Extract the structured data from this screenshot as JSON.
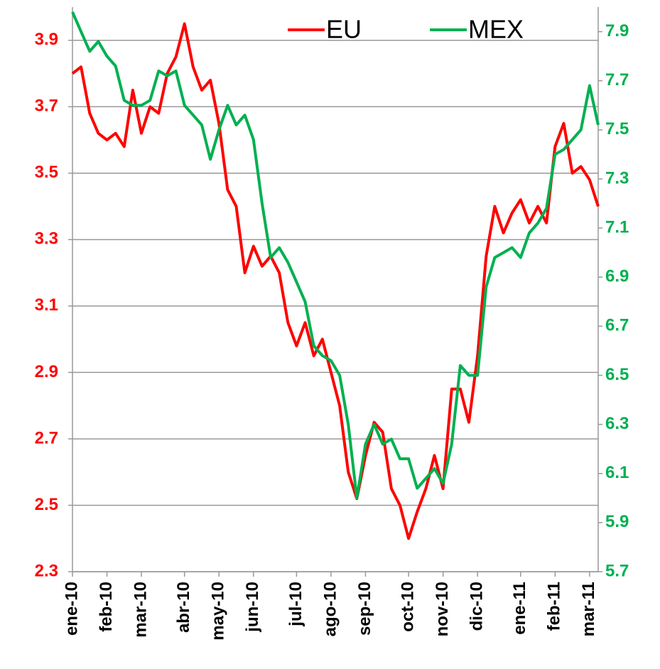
{
  "chart_data": {
    "type": "line",
    "categories": [
      "ene-10",
      null,
      null,
      null,
      "feb-10",
      null,
      null,
      null,
      "mar-10",
      null,
      null,
      null,
      null,
      "abr-10",
      null,
      null,
      null,
      "may-10",
      null,
      null,
      null,
      "jun-10",
      null,
      null,
      null,
      null,
      "jul-10",
      null,
      null,
      null,
      "ago-10",
      null,
      null,
      null,
      "sep-10",
      null,
      null,
      null,
      null,
      "oct-10",
      null,
      null,
      null,
      "nov-10",
      null,
      null,
      null,
      "dic-10",
      null,
      null,
      null,
      null,
      "ene-11",
      null,
      null,
      null,
      "feb-11",
      null,
      null,
      null,
      "mar-11",
      null
    ],
    "series": [
      {
        "name": "EU",
        "color": "#ff0000",
        "axis": "y",
        "values": [
          3.8,
          3.82,
          3.68,
          3.62,
          3.6,
          3.62,
          3.58,
          3.75,
          3.62,
          3.7,
          3.68,
          3.8,
          3.85,
          3.95,
          3.82,
          3.75,
          3.78,
          3.65,
          3.45,
          3.4,
          3.2,
          3.28,
          3.22,
          3.25,
          3.2,
          3.05,
          2.98,
          3.05,
          2.95,
          3.0,
          2.9,
          2.8,
          2.6,
          2.52,
          2.65,
          2.75,
          2.72,
          2.55,
          2.5,
          2.4,
          2.48,
          2.55,
          2.65,
          2.55,
          2.85,
          2.85,
          2.75,
          2.95,
          3.25,
          3.4,
          3.32,
          3.38,
          3.42,
          3.35,
          3.4,
          3.35,
          3.58,
          3.65,
          3.5,
          3.52,
          3.48,
          3.4
        ]
      },
      {
        "name": "MEX",
        "color": "#00b050",
        "axis": "y2",
        "values": [
          7.98,
          7.9,
          7.82,
          7.86,
          7.8,
          7.76,
          7.62,
          7.6,
          7.6,
          7.62,
          7.74,
          7.72,
          7.74,
          7.6,
          7.56,
          7.52,
          7.38,
          7.5,
          7.6,
          7.52,
          7.56,
          7.46,
          7.2,
          6.98,
          7.02,
          6.96,
          6.88,
          6.8,
          6.62,
          6.58,
          6.56,
          6.5,
          6.3,
          6.0,
          6.22,
          6.3,
          6.22,
          6.24,
          6.16,
          6.16,
          6.04,
          6.08,
          6.12,
          6.06,
          6.22,
          6.54,
          6.5,
          6.5,
          6.86,
          6.98,
          7.0,
          7.02,
          6.98,
          7.08,
          7.12,
          7.18,
          7.4,
          7.42,
          7.46,
          7.5,
          7.68,
          7.52
        ]
      }
    ],
    "ylim": [
      2.3,
      4.0
    ],
    "yticks": [
      2.3,
      2.5,
      2.7,
      2.9,
      3.1,
      3.3,
      3.5,
      3.7,
      3.9
    ],
    "y2lim": [
      5.7,
      8.0
    ],
    "y2ticks": [
      5.7,
      5.9,
      6.1,
      6.3,
      6.5,
      6.7,
      6.9,
      7.1,
      7.3,
      7.5,
      7.7,
      7.9
    ],
    "grid": true,
    "legend": "top"
  }
}
